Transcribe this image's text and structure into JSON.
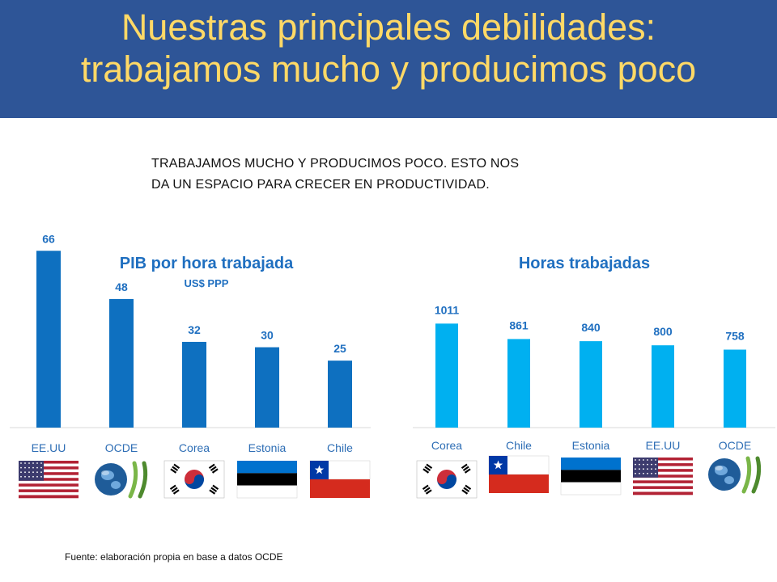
{
  "header": {
    "title_line1": "Nuestras principales debilidades:",
    "title_line2": "trabajamos mucho y producimos poco"
  },
  "intro": {
    "line1": "TRABAJAMOS MUCHO Y PRODUCIMOS POCO. ESTO NOS",
    "line2": "DA UN ESPACIO PARA CRECER EN PRODUCTIVIDAD."
  },
  "chart_data": [
    {
      "type": "bar",
      "title": "PIB por hora trabajada",
      "subtitle": "US$ PPP",
      "categories": [
        "EE.UU",
        "OCDE",
        "Corea",
        "Estonia",
        "Chile"
      ],
      "values": [
        66,
        48,
        32,
        30,
        25
      ],
      "ylim": [
        0,
        70
      ],
      "bar_color": "#0E70C0",
      "grid": false,
      "icons": [
        "flag-usa-icon",
        "oecd-logo-icon",
        "flag-korea-icon",
        "flag-estonia-icon",
        "flag-chile-icon"
      ]
    },
    {
      "type": "bar",
      "title": "Horas trabajadas",
      "categories": [
        "Corea",
        "Chile",
        "Estonia",
        "EE.UU",
        "OCDE"
      ],
      "values": [
        1011,
        861,
        840,
        800,
        758
      ],
      "ylim": [
        0,
        1100
      ],
      "bar_color": "#00B0F0",
      "grid": false,
      "icons": [
        "flag-korea-icon",
        "flag-chile-icon",
        "flag-estonia-icon",
        "flag-usa-icon",
        "oecd-logo-icon"
      ]
    }
  ],
  "footer": {
    "source": "Fuente: elaboración propia en base a datos OCDE"
  },
  "colors": {
    "header_bg": "#2E5597",
    "title": "#FFD966",
    "chart_text": "#1F6FC0",
    "bar_left": "#0E70C0",
    "bar_right": "#00B0F0"
  }
}
